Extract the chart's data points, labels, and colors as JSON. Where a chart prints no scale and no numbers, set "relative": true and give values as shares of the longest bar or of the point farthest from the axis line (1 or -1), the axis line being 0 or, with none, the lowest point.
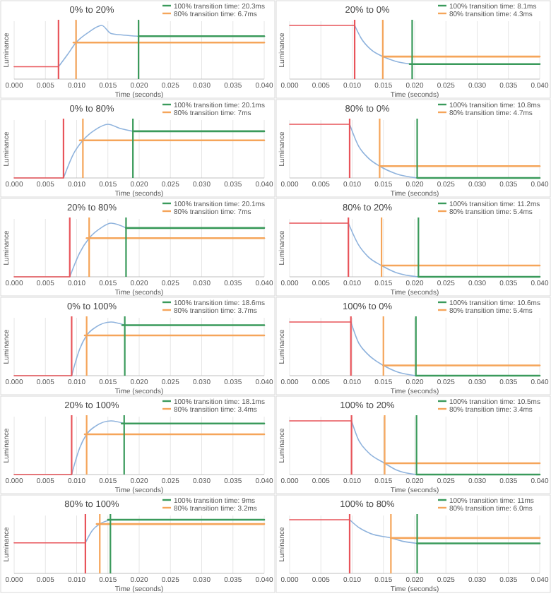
{
  "chart_data": [
    {
      "type": "line",
      "title": "0% to 20%",
      "xlabel": "Time (seconds)",
      "ylabel": "Luminance",
      "relative": true,
      "grid": "x",
      "legend": "top right",
      "xlim": [
        0,
        0.04
      ],
      "xticks": [
        {
          "value": 0,
          "label": "0.000"
        },
        {
          "value": 0.005,
          "label": "0.005"
        },
        {
          "value": 0.01,
          "label": "0.010"
        },
        {
          "value": 0.015,
          "label": "0.015"
        },
        {
          "value": 0.02,
          "label": "0.020"
        },
        {
          "value": 0.025,
          "label": "0.025"
        },
        {
          "value": 0.03,
          "label": "0.030"
        },
        {
          "value": 0.035,
          "label": "0.035"
        },
        {
          "value": 0.04,
          "label": "0.040"
        }
      ],
      "ref_lines": [
        {
          "axis": "x",
          "value": 0.0071,
          "color": "#e8545a"
        },
        {
          "axis": "x",
          "value": 0.0099,
          "color": "#f5a55a"
        },
        {
          "axis": "x",
          "value": 0.0199,
          "color": "#3a9a5b"
        }
      ],
      "series": [
        {
          "color": "#8fb3dd",
          "x": [
            0.0071,
            0.0085,
            0.0099,
            0.012,
            0.014,
            0.0155,
            0.0175,
            0.0199
          ],
          "values": [
            0.23,
            0.45,
            0.68,
            0.88,
            1.0,
            0.85,
            0.82,
            0.8
          ]
        },
        {
          "color": "#e8545a",
          "x": [
            0,
            0.0071
          ],
          "values": [
            0.23,
            0.23
          ]
        },
        {
          "name": "100% transition time: 20.3ms",
          "color": "#3a9a5b",
          "x": [
            0.0199,
            0.04
          ],
          "values": [
            0.8,
            0.8
          ]
        },
        {
          "name": "80% transition time: 6.7ms",
          "color": "#f5a55a",
          "x": [
            0.0095,
            0.04
          ],
          "values": [
            0.68,
            0.68
          ]
        }
      ]
    },
    {
      "type": "line",
      "title": "20% to 0%",
      "xlabel": "Time (seconds)",
      "ylabel": "Luminance",
      "relative": true,
      "grid": "x",
      "legend": "top right",
      "xlim": [
        0,
        0.04
      ],
      "xticks": [
        {
          "value": 0,
          "label": "0.000"
        },
        {
          "value": 0.005,
          "label": "0.005"
        },
        {
          "value": 0.01,
          "label": "0.010"
        },
        {
          "value": 0.015,
          "label": "0.015"
        },
        {
          "value": 0.02,
          "label": "0.020"
        },
        {
          "value": 0.025,
          "label": "0.025"
        },
        {
          "value": 0.03,
          "label": "0.030"
        },
        {
          "value": 0.035,
          "label": "0.035"
        },
        {
          "value": 0.04,
          "label": "0.040"
        }
      ],
      "ref_lines": [
        {
          "axis": "x",
          "value": 0.0104,
          "color": "#e8545a"
        },
        {
          "axis": "x",
          "value": 0.0149,
          "color": "#f5a55a"
        },
        {
          "axis": "x",
          "value": 0.0196,
          "color": "#3a9a5b"
        }
      ],
      "series": [
        {
          "color": "#8fb3dd",
          "x": [
            0.0104,
            0.0115,
            0.013,
            0.0149,
            0.017,
            0.0196
          ],
          "values": [
            1.0,
            0.75,
            0.55,
            0.42,
            0.33,
            0.28
          ]
        },
        {
          "color": "#e8545a",
          "x": [
            0,
            0.0104
          ],
          "values": [
            1.0,
            1.0
          ]
        },
        {
          "name": "100% transition time: 8.1ms",
          "color": "#3a9a5b",
          "x": [
            0.0192,
            0.04
          ],
          "values": [
            0.28,
            0.28
          ]
        },
        {
          "name": "80% transition time: 4.3ms",
          "color": "#f5a55a",
          "x": [
            0.0149,
            0.04
          ],
          "values": [
            0.42,
            0.42
          ]
        }
      ]
    },
    {
      "type": "line",
      "title": "0% to 80%",
      "xlabel": "Time (seconds)",
      "ylabel": "Luminance",
      "relative": true,
      "grid": "x",
      "legend": "top right",
      "xlim": [
        0,
        0.04
      ],
      "xticks": [
        {
          "value": 0,
          "label": "0.000"
        },
        {
          "value": 0.005,
          "label": "0.005"
        },
        {
          "value": 0.01,
          "label": "0.010"
        },
        {
          "value": 0.015,
          "label": "0.015"
        },
        {
          "value": 0.02,
          "label": "0.020"
        },
        {
          "value": 0.025,
          "label": "0.025"
        },
        {
          "value": 0.03,
          "label": "0.030"
        },
        {
          "value": 0.035,
          "label": "0.035"
        },
        {
          "value": 0.04,
          "label": "0.040"
        }
      ],
      "ref_lines": [
        {
          "axis": "x",
          "value": 0.0079,
          "color": "#e8545a"
        },
        {
          "axis": "x",
          "value": 0.011,
          "color": "#f5a55a"
        },
        {
          "axis": "x",
          "value": 0.019,
          "color": "#3a9a5b"
        }
      ],
      "series": [
        {
          "color": "#8fb3dd",
          "x": [
            0.0079,
            0.0095,
            0.011,
            0.013,
            0.015,
            0.017,
            0.019
          ],
          "values": [
            0,
            0.45,
            0.7,
            0.9,
            1.0,
            0.92,
            0.87
          ]
        },
        {
          "color": "#e8545a",
          "x": [
            0,
            0.0079
          ],
          "values": [
            0,
            0
          ]
        },
        {
          "name": "100% transition time: 20.1ms",
          "color": "#3a9a5b",
          "x": [
            0.019,
            0.04
          ],
          "values": [
            0.87,
            0.87
          ]
        },
        {
          "name": "80% transition time: 7ms",
          "color": "#f5a55a",
          "x": [
            0.0105,
            0.04
          ],
          "values": [
            0.7,
            0.7
          ]
        }
      ]
    },
    {
      "type": "line",
      "title": "80% to 0%",
      "xlabel": "Time (seconds)",
      "ylabel": "Luminance",
      "relative": true,
      "grid": "x",
      "legend": "top right",
      "xlim": [
        0,
        0.04
      ],
      "xticks": [
        {
          "value": 0,
          "label": "0.000"
        },
        {
          "value": 0.005,
          "label": "0.005"
        },
        {
          "value": 0.01,
          "label": "0.010"
        },
        {
          "value": 0.015,
          "label": "0.015"
        },
        {
          "value": 0.02,
          "label": "0.020"
        },
        {
          "value": 0.025,
          "label": "0.025"
        },
        {
          "value": 0.03,
          "label": "0.030"
        },
        {
          "value": 0.035,
          "label": "0.035"
        },
        {
          "value": 0.04,
          "label": "0.040"
        }
      ],
      "ref_lines": [
        {
          "axis": "x",
          "value": 0.0096,
          "color": "#e8545a"
        },
        {
          "axis": "x",
          "value": 0.0144,
          "color": "#f5a55a"
        },
        {
          "axis": "x",
          "value": 0.0204,
          "color": "#3a9a5b"
        }
      ],
      "series": [
        {
          "color": "#8fb3dd",
          "x": [
            0.0096,
            0.011,
            0.0125,
            0.0144,
            0.017,
            0.0204
          ],
          "values": [
            1.0,
            0.6,
            0.38,
            0.22,
            0.08,
            0
          ]
        },
        {
          "color": "#e8545a",
          "x": [
            0,
            0.0096
          ],
          "values": [
            1.0,
            1.0
          ]
        },
        {
          "name": "100% transition time: 10.8ms",
          "color": "#3a9a5b",
          "x": [
            0.0204,
            0.04
          ],
          "values": [
            0,
            0
          ]
        },
        {
          "name": "80% transition time: 4.7ms",
          "color": "#f5a55a",
          "x": [
            0.0144,
            0.04
          ],
          "values": [
            0.22,
            0.22
          ]
        }
      ]
    },
    {
      "type": "line",
      "title": "20% to 80%",
      "xlabel": "Time (seconds)",
      "ylabel": "Luminance",
      "relative": true,
      "grid": "x",
      "legend": "top right",
      "xlim": [
        0,
        0.04
      ],
      "xticks": [
        {
          "value": 0,
          "label": "0.000"
        },
        {
          "value": 0.005,
          "label": "0.005"
        },
        {
          "value": 0.01,
          "label": "0.010"
        },
        {
          "value": 0.015,
          "label": "0.015"
        },
        {
          "value": 0.02,
          "label": "0.020"
        },
        {
          "value": 0.025,
          "label": "0.025"
        },
        {
          "value": 0.03,
          "label": "0.030"
        },
        {
          "value": 0.035,
          "label": "0.035"
        },
        {
          "value": 0.04,
          "label": "0.040"
        }
      ],
      "ref_lines": [
        {
          "axis": "x",
          "value": 0.0089,
          "color": "#e8545a"
        },
        {
          "axis": "x",
          "value": 0.012,
          "color": "#f5a55a"
        },
        {
          "axis": "x",
          "value": 0.0179,
          "color": "#3a9a5b"
        }
      ],
      "series": [
        {
          "color": "#8fb3dd",
          "x": [
            0.0089,
            0.0105,
            0.012,
            0.014,
            0.0155,
            0.0179
          ],
          "values": [
            0,
            0.45,
            0.72,
            0.92,
            1.0,
            0.91
          ]
        },
        {
          "color": "#e8545a",
          "x": [
            0,
            0.0089
          ],
          "values": [
            0,
            0
          ]
        },
        {
          "name": "100% transition time: 20.1ms",
          "color": "#3a9a5b",
          "x": [
            0.0179,
            0.04
          ],
          "values": [
            0.91,
            0.91
          ]
        },
        {
          "name": "80% transition time: 7ms",
          "color": "#f5a55a",
          "x": [
            0.0116,
            0.04
          ],
          "values": [
            0.72,
            0.72
          ]
        }
      ]
    },
    {
      "type": "line",
      "title": "80% to 20%",
      "xlabel": "Time (seconds)",
      "ylabel": "Luminance",
      "relative": true,
      "grid": "x",
      "legend": "top right",
      "xlim": [
        0,
        0.04
      ],
      "xticks": [
        {
          "value": 0,
          "label": "0.000"
        },
        {
          "value": 0.005,
          "label": "0.005"
        },
        {
          "value": 0.01,
          "label": "0.010"
        },
        {
          "value": 0.015,
          "label": "0.015"
        },
        {
          "value": 0.02,
          "label": "0.020"
        },
        {
          "value": 0.025,
          "label": "0.025"
        },
        {
          "value": 0.03,
          "label": "0.030"
        },
        {
          "value": 0.035,
          "label": "0.035"
        },
        {
          "value": 0.04,
          "label": "0.040"
        }
      ],
      "ref_lines": [
        {
          "axis": "x",
          "value": 0.0094,
          "color": "#e8545a"
        },
        {
          "axis": "x",
          "value": 0.0147,
          "color": "#f5a55a"
        },
        {
          "axis": "x",
          "value": 0.0206,
          "color": "#3a9a5b"
        }
      ],
      "series": [
        {
          "color": "#8fb3dd",
          "x": [
            0.0094,
            0.011,
            0.0125,
            0.0147,
            0.017,
            0.0206
          ],
          "values": [
            1.0,
            0.6,
            0.38,
            0.21,
            0.08,
            0
          ]
        },
        {
          "color": "#e8545a",
          "x": [
            0,
            0.0094
          ],
          "values": [
            1.0,
            1.0
          ]
        },
        {
          "name": "100% transition time: 11.2ms",
          "color": "#3a9a5b",
          "x": [
            0.0206,
            0.04
          ],
          "values": [
            0,
            0
          ]
        },
        {
          "name": "80% transition time: 5.4ms",
          "color": "#f5a55a",
          "x": [
            0.0147,
            0.04
          ],
          "values": [
            0.21,
            0.21
          ]
        }
      ]
    },
    {
      "type": "line",
      "title": "0% to 100%",
      "xlabel": "Time (seconds)",
      "ylabel": "Luminance",
      "relative": true,
      "grid": "x",
      "legend": "top right",
      "xlim": [
        0,
        0.04
      ],
      "xticks": [
        {
          "value": 0,
          "label": "0.000"
        },
        {
          "value": 0.005,
          "label": "0.005"
        },
        {
          "value": 0.01,
          "label": "0.010"
        },
        {
          "value": 0.015,
          "label": "0.015"
        },
        {
          "value": 0.02,
          "label": "0.020"
        },
        {
          "value": 0.025,
          "label": "0.025"
        },
        {
          "value": 0.03,
          "label": "0.030"
        },
        {
          "value": 0.035,
          "label": "0.035"
        },
        {
          "value": 0.04,
          "label": "0.040"
        }
      ],
      "ref_lines": [
        {
          "axis": "x",
          "value": 0.0092,
          "color": "#e8545a"
        },
        {
          "axis": "x",
          "value": 0.0116,
          "color": "#f5a55a"
        },
        {
          "axis": "x",
          "value": 0.0177,
          "color": "#3a9a5b"
        }
      ],
      "series": [
        {
          "color": "#8fb3dd",
          "x": [
            0.0092,
            0.0105,
            0.0116,
            0.013,
            0.0155,
            0.0177
          ],
          "values": [
            0,
            0.5,
            0.75,
            0.9,
            1.0,
            0.94
          ]
        },
        {
          "color": "#e8545a",
          "x": [
            0,
            0.0092
          ],
          "values": [
            0,
            0
          ]
        },
        {
          "name": "100% transition time: 18.6ms",
          "color": "#3a9a5b",
          "x": [
            0.0173,
            0.04
          ],
          "values": [
            0.94,
            0.94
          ]
        },
        {
          "name": "80% transition time: 3.7ms",
          "color": "#f5a55a",
          "x": [
            0.0113,
            0.04
          ],
          "values": [
            0.75,
            0.75
          ]
        }
      ]
    },
    {
      "type": "line",
      "title": "100% to 0%",
      "xlabel": "Time (seconds)",
      "ylabel": "Luminance",
      "relative": true,
      "grid": "x",
      "legend": "top right",
      "xlim": [
        0,
        0.04
      ],
      "xticks": [
        {
          "value": 0,
          "label": "0.000"
        },
        {
          "value": 0.005,
          "label": "0.005"
        },
        {
          "value": 0.01,
          "label": "0.010"
        },
        {
          "value": 0.015,
          "label": "0.015"
        },
        {
          "value": 0.02,
          "label": "0.020"
        },
        {
          "value": 0.025,
          "label": "0.025"
        },
        {
          "value": 0.03,
          "label": "0.030"
        },
        {
          "value": 0.035,
          "label": "0.035"
        },
        {
          "value": 0.04,
          "label": "0.040"
        }
      ],
      "ref_lines": [
        {
          "axis": "x",
          "value": 0.0098,
          "color": "#e8545a"
        },
        {
          "axis": "x",
          "value": 0.015,
          "color": "#f5a55a"
        },
        {
          "axis": "x",
          "value": 0.0202,
          "color": "#3a9a5b"
        }
      ],
      "series": [
        {
          "color": "#8fb3dd",
          "x": [
            0.0098,
            0.011,
            0.0125,
            0.015,
            0.017,
            0.0202
          ],
          "values": [
            1.0,
            0.62,
            0.4,
            0.19,
            0.08,
            0
          ]
        },
        {
          "color": "#e8545a",
          "x": [
            0,
            0.0098
          ],
          "values": [
            1.0,
            1.0
          ]
        },
        {
          "name": "100% transition time: 10.6ms",
          "color": "#3a9a5b",
          "x": [
            0.0202,
            0.04
          ],
          "values": [
            0,
            0
          ]
        },
        {
          "name": "80% transition time: 5.4ms",
          "color": "#f5a55a",
          "x": [
            0.015,
            0.04
          ],
          "values": [
            0.19,
            0.19
          ]
        }
      ]
    },
    {
      "type": "line",
      "title": "20% to 100%",
      "xlabel": "Time (seconds)",
      "ylabel": "Luminance",
      "relative": true,
      "grid": "x",
      "legend": "top right",
      "xlim": [
        0,
        0.04
      ],
      "xticks": [
        {
          "value": 0,
          "label": "0.000"
        },
        {
          "value": 0.005,
          "label": "0.005"
        },
        {
          "value": 0.01,
          "label": "0.010"
        },
        {
          "value": 0.015,
          "label": "0.015"
        },
        {
          "value": 0.02,
          "label": "0.020"
        },
        {
          "value": 0.025,
          "label": "0.025"
        },
        {
          "value": 0.03,
          "label": "0.030"
        },
        {
          "value": 0.035,
          "label": "0.035"
        },
        {
          "value": 0.04,
          "label": "0.040"
        }
      ],
      "ref_lines": [
        {
          "axis": "x",
          "value": 0.0092,
          "color": "#e8545a"
        },
        {
          "axis": "x",
          "value": 0.0116,
          "color": "#f5a55a"
        },
        {
          "axis": "x",
          "value": 0.0176,
          "color": "#3a9a5b"
        }
      ],
      "series": [
        {
          "color": "#8fb3dd",
          "x": [
            0.0092,
            0.0105,
            0.0116,
            0.013,
            0.0155,
            0.0176
          ],
          "values": [
            0,
            0.5,
            0.75,
            0.9,
            1.0,
            0.95
          ]
        },
        {
          "color": "#e8545a",
          "x": [
            0,
            0.0092
          ],
          "values": [
            0,
            0
          ]
        },
        {
          "name": "100% transition time: 18.1ms",
          "color": "#3a9a5b",
          "x": [
            0.0172,
            0.04
          ],
          "values": [
            0.95,
            0.95
          ]
        },
        {
          "name": "80% transition time: 3.4ms",
          "color": "#f5a55a",
          "x": [
            0.0113,
            0.04
          ],
          "values": [
            0.75,
            0.75
          ]
        }
      ]
    },
    {
      "type": "line",
      "title": "100% to 20%",
      "xlabel": "Time (seconds)",
      "ylabel": "Luminance",
      "relative": true,
      "grid": "x",
      "legend": "top right",
      "xlim": [
        0,
        0.04
      ],
      "xticks": [
        {
          "value": 0,
          "label": "0.000"
        },
        {
          "value": 0.005,
          "label": "0.005"
        },
        {
          "value": 0.01,
          "label": "0.010"
        },
        {
          "value": 0.015,
          "label": "0.015"
        },
        {
          "value": 0.02,
          "label": "0.020"
        },
        {
          "value": 0.025,
          "label": "0.025"
        },
        {
          "value": 0.03,
          "label": "0.030"
        },
        {
          "value": 0.035,
          "label": "0.035"
        },
        {
          "value": 0.04,
          "label": "0.040"
        }
      ],
      "ref_lines": [
        {
          "axis": "x",
          "value": 0.0099,
          "color": "#e8545a"
        },
        {
          "axis": "x",
          "value": 0.0152,
          "color": "#f5a55a"
        },
        {
          "axis": "x",
          "value": 0.0203,
          "color": "#3a9a5b"
        }
      ],
      "series": [
        {
          "color": "#8fb3dd",
          "x": [
            0.0099,
            0.011,
            0.0125,
            0.0152,
            0.017,
            0.0203
          ],
          "values": [
            1.0,
            0.65,
            0.42,
            0.21,
            0.09,
            0
          ]
        },
        {
          "color": "#e8545a",
          "x": [
            0,
            0.0099
          ],
          "values": [
            1.0,
            1.0
          ]
        },
        {
          "name": "100% transition time: 10.5ms",
          "color": "#3a9a5b",
          "x": [
            0.0203,
            0.04
          ],
          "values": [
            0,
            0
          ]
        },
        {
          "name": "80% transition time: 3.4ms",
          "color": "#f5a55a",
          "x": [
            0.0152,
            0.04
          ],
          "values": [
            0.21,
            0.21
          ]
        }
      ]
    },
    {
      "type": "line",
      "title": "80% to 100%",
      "xlabel": "Time (seconds)",
      "ylabel": "Luminance",
      "relative": true,
      "grid": "x",
      "legend": "top right",
      "xlim": [
        0,
        0.04
      ],
      "xticks": [
        {
          "value": 0,
          "label": "0.000"
        },
        {
          "value": 0.005,
          "label": "0.005"
        },
        {
          "value": 0.01,
          "label": "0.010"
        },
        {
          "value": 0.015,
          "label": "0.015"
        },
        {
          "value": 0.02,
          "label": "0.020"
        },
        {
          "value": 0.025,
          "label": "0.025"
        },
        {
          "value": 0.03,
          "label": "0.030"
        },
        {
          "value": 0.035,
          "label": "0.035"
        },
        {
          "value": 0.04,
          "label": "0.040"
        }
      ],
      "ref_lines": [
        {
          "axis": "x",
          "value": 0.0114,
          "color": "#e8545a"
        },
        {
          "axis": "x",
          "value": 0.0137,
          "color": "#f5a55a"
        },
        {
          "axis": "x",
          "value": 0.0154,
          "color": "#3a9a5b"
        }
      ],
      "series": [
        {
          "color": "#8fb3dd",
          "x": [
            0.0114,
            0.0125,
            0.0137,
            0.0154
          ],
          "values": [
            0.57,
            0.8,
            0.92,
            1.0
          ]
        },
        {
          "color": "#e8545a",
          "x": [
            0,
            0.0114
          ],
          "values": [
            0.57,
            0.57
          ]
        },
        {
          "name": "100% transition time: 9ms",
          "color": "#3a9a5b",
          "x": [
            0.015,
            0.04
          ],
          "values": [
            1.0,
            1.0
          ]
        },
        {
          "name": "80% transition time: 3.2ms",
          "color": "#f5a55a",
          "x": [
            0.0132,
            0.04
          ],
          "values": [
            0.92,
            0.92
          ]
        }
      ]
    },
    {
      "type": "line",
      "title": "100% to 80%",
      "xlabel": "Time (seconds)",
      "ylabel": "Luminance",
      "relative": true,
      "grid": "x",
      "legend": "top right",
      "xlim": [
        0,
        0.04
      ],
      "xticks": [
        {
          "value": 0,
          "label": "0.000"
        },
        {
          "value": 0.005,
          "label": "0.005"
        },
        {
          "value": 0.01,
          "label": "0.010"
        },
        {
          "value": 0.015,
          "label": "0.015"
        },
        {
          "value": 0.02,
          "label": "0.020"
        },
        {
          "value": 0.025,
          "label": "0.025"
        },
        {
          "value": 0.03,
          "label": "0.030"
        },
        {
          "value": 0.035,
          "label": "0.035"
        },
        {
          "value": 0.04,
          "label": "0.040"
        }
      ],
      "ref_lines": [
        {
          "axis": "x",
          "value": 0.0096,
          "color": "#e8545a"
        },
        {
          "axis": "x",
          "value": 0.0162,
          "color": "#f5a55a"
        },
        {
          "axis": "x",
          "value": 0.0204,
          "color": "#3a9a5b"
        }
      ],
      "series": [
        {
          "color": "#8fb3dd",
          "x": [
            0.0096,
            0.011,
            0.013,
            0.0162,
            0.018,
            0.0204
          ],
          "values": [
            1.0,
            0.86,
            0.74,
            0.66,
            0.6,
            0.56
          ]
        },
        {
          "color": "#e8545a",
          "x": [
            0,
            0.0096
          ],
          "values": [
            1.0,
            1.0
          ]
        },
        {
          "name": "100% transition time: 11ms",
          "color": "#3a9a5b",
          "x": [
            0.0204,
            0.04
          ],
          "values": [
            0.56,
            0.56
          ]
        },
        {
          "name": "80% transition time: 6.0ms",
          "color": "#f5a55a",
          "x": [
            0.0162,
            0.04
          ],
          "values": [
            0.66,
            0.66
          ]
        }
      ]
    }
  ]
}
